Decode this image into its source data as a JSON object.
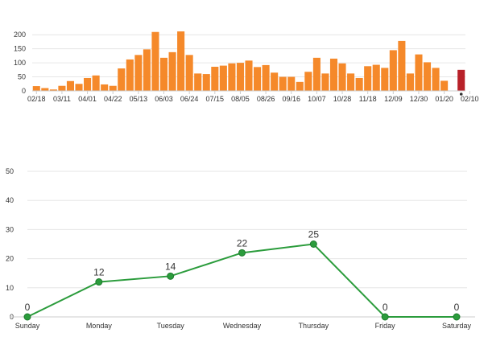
{
  "colors": {
    "bar": "#f5892a",
    "bar_highlight": "#b82129",
    "line": "#2b9c3c",
    "marker": "#2b9c3c",
    "grid": "#e6e6e6",
    "text": "#333333",
    "background": "#ffffff"
  },
  "chart_data": [
    {
      "type": "bar",
      "x_tick_labels": [
        "02/18",
        "03/11",
        "04/01",
        "04/22",
        "05/13",
        "06/03",
        "06/24",
        "07/15",
        "08/05",
        "08/26",
        "09/16",
        "10/07",
        "10/28",
        "11/18",
        "12/09",
        "12/30",
        "01/20",
        "02/10"
      ],
      "categories_count": 51,
      "values": [
        17,
        10,
        5,
        18,
        35,
        25,
        46,
        55,
        23,
        18,
        80,
        112,
        128,
        148,
        210,
        118,
        138,
        212,
        128,
        62,
        60,
        86,
        90,
        98,
        100,
        108,
        85,
        92,
        65,
        50,
        50,
        32,
        68,
        118,
        62,
        115,
        98,
        62,
        46,
        88,
        93,
        82,
        145,
        178,
        62,
        130,
        102,
        82,
        36,
        0,
        75
      ],
      "highlight_index": 50,
      "highlight_marker_label": "•",
      "title": "",
      "xlabel": "",
      "ylabel": "",
      "yticks": [
        0,
        50,
        100,
        150,
        200
      ],
      "ylim": [
        0,
        215
      ],
      "grid": true,
      "legend": "none"
    },
    {
      "type": "line",
      "categories": [
        "Sunday",
        "Monday",
        "Tuesday",
        "Wednesday",
        "Thursday",
        "Friday",
        "Saturday"
      ],
      "values": [
        0,
        12,
        14,
        22,
        25,
        0,
        0
      ],
      "data_labels": [
        "0",
        "12",
        "14",
        "22",
        "25",
        "0",
        "0"
      ],
      "title": "",
      "xlabel": "",
      "ylabel": "",
      "yticks": [
        0,
        10,
        20,
        30,
        40,
        50
      ],
      "ylim": [
        0,
        50
      ],
      "grid": true,
      "legend": "none"
    }
  ]
}
